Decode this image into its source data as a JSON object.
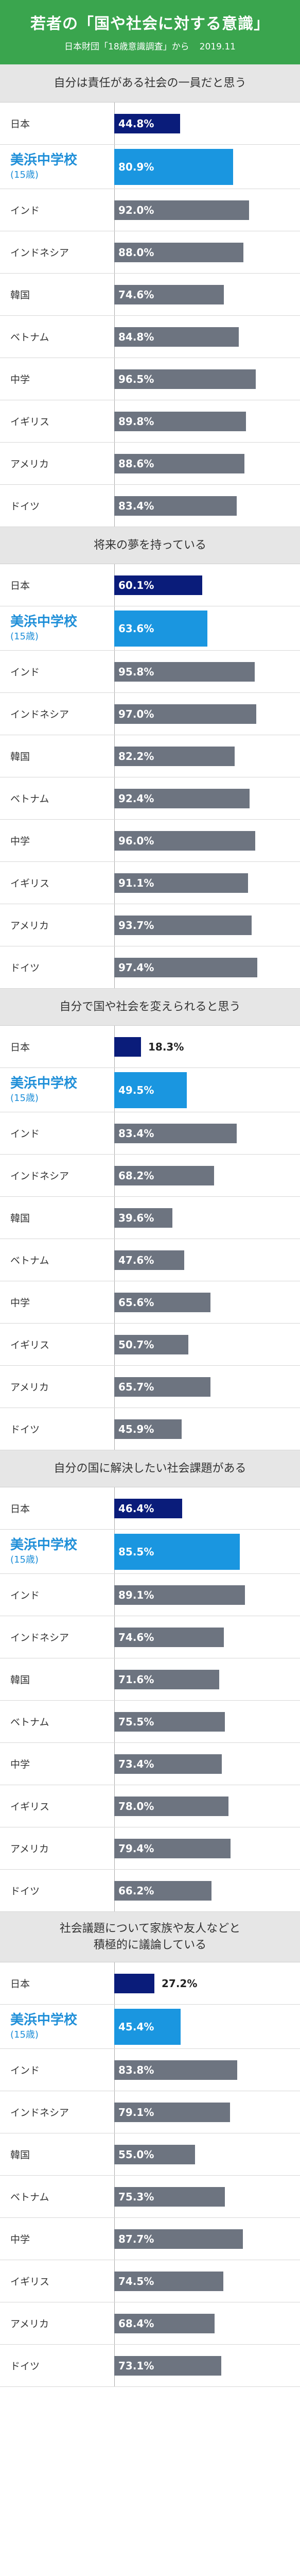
{
  "header": {
    "title": "若者の「国や社会に対する意識」",
    "subtitle_source": "日本財団「18歳意識調査」から",
    "subtitle_date": "2019.11"
  },
  "colors": {
    "japan": "#0a1c7a",
    "school": "#1a96e0",
    "other": "#6d7480",
    "header": "#3aa54e"
  },
  "row_labels": [
    {
      "name": "日本"
    },
    {
      "name": "美浜中学校",
      "sub": "(15歳)"
    },
    {
      "name": "インド"
    },
    {
      "name": "インドネシア"
    },
    {
      "name": "韓国"
    },
    {
      "name": "ベトナム"
    },
    {
      "name": "中学"
    },
    {
      "name": "イギリス"
    },
    {
      "name": "アメリカ"
    },
    {
      "name": "ドイツ"
    }
  ],
  "chart_data": [
    {
      "type": "bar",
      "title": "自分は責任がある社会の一員だと思う",
      "categories": [
        "日本",
        "美浜中学校",
        "インド",
        "インドネシア",
        "韓国",
        "ベトナム",
        "中学",
        "イギリス",
        "アメリカ",
        "ドイツ"
      ],
      "values": [
        44.8,
        80.9,
        92.0,
        88.0,
        74.6,
        84.8,
        96.5,
        89.8,
        88.6,
        83.4
      ],
      "labels": [
        "44.8%",
        "80.9%",
        "92.0%",
        "88.0%",
        "74.6%",
        "84.8%",
        "96.5%",
        "89.8%",
        "88.6%",
        "83.4%"
      ]
    },
    {
      "type": "bar",
      "title": "将来の夢を持っている",
      "categories": [
        "日本",
        "美浜中学校",
        "インド",
        "インドネシア",
        "韓国",
        "ベトナム",
        "中学",
        "イギリス",
        "アメリカ",
        "ドイツ"
      ],
      "values": [
        60.1,
        63.6,
        95.8,
        97.0,
        82.2,
        92.4,
        96.0,
        91.1,
        93.7,
        97.4
      ],
      "labels": [
        "60.1%",
        "63.6%",
        "95.8%",
        "97.0%",
        "82.2%",
        "92.4%",
        "96.0%",
        "91.1%",
        "93.7%",
        "97.4%"
      ]
    },
    {
      "type": "bar",
      "title": "自分で国や社会を変えられると思う",
      "categories": [
        "日本",
        "美浜中学校",
        "インド",
        "インドネシア",
        "韓国",
        "ベトナム",
        "中学",
        "イギリス",
        "アメリカ",
        "ドイツ"
      ],
      "values": [
        18.3,
        49.5,
        83.4,
        68.2,
        39.6,
        47.6,
        65.6,
        50.7,
        65.7,
        45.9
      ],
      "labels": [
        "18.3%",
        "49.5%",
        "83.4%",
        "68.2%",
        "39.6%",
        "47.6%",
        "65.6%",
        "50.7%",
        "65.7%",
        "45.9%"
      ]
    },
    {
      "type": "bar",
      "title": "自分の国に解決したい社会課題がある",
      "categories": [
        "日本",
        "美浜中学校",
        "インド",
        "インドネシア",
        "韓国",
        "ベトナム",
        "中学",
        "イギリス",
        "アメリカ",
        "ドイツ"
      ],
      "values": [
        46.4,
        85.5,
        89.1,
        74.6,
        71.6,
        75.5,
        73.4,
        78.0,
        79.4,
        66.2
      ],
      "labels": [
        "46.4%",
        "85.5%",
        "89.1%",
        "74.6%",
        "71.6%",
        "75.5%",
        "73.4%",
        "78.0%",
        "79.4%",
        "66.2%"
      ]
    },
    {
      "type": "bar",
      "title": "社会議題について家族や友人などと\n積極的に議論している",
      "categories": [
        "日本",
        "美浜中学校",
        "インド",
        "インドネシア",
        "韓国",
        "ベトナム",
        "中学",
        "イギリス",
        "アメリカ",
        "ドイツ"
      ],
      "values": [
        27.2,
        45.4,
        83.8,
        79.1,
        55.0,
        75.3,
        87.7,
        74.5,
        68.4,
        73.1
      ],
      "labels": [
        "27.2%",
        "45.4%",
        "83.8%",
        "79.1%",
        "55.0%",
        "75.3%",
        "87.7%",
        "74.5%",
        "68.4%",
        "73.1%"
      ]
    }
  ]
}
